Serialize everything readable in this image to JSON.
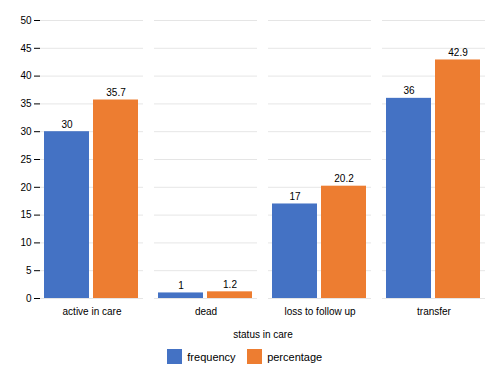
{
  "chart_data": {
    "type": "bar",
    "xlabel": "status in care",
    "categories": [
      "active in care",
      "dead",
      "loss to follow up",
      "transfer"
    ],
    "series": [
      {
        "name": "frequency",
        "color": "#4472C4",
        "values": [
          30,
          1,
          17,
          36
        ]
      },
      {
        "name": "percentage",
        "color": "#ED7D31",
        "values": [
          35.7,
          1.2,
          20.2,
          42.9
        ]
      }
    ],
    "ylim": [
      0,
      50
    ],
    "yticks": [
      0,
      5,
      10,
      15,
      20,
      25,
      30,
      35,
      40,
      45,
      50
    ],
    "grid": true,
    "legend": "bottom",
    "data_labels": true
  }
}
